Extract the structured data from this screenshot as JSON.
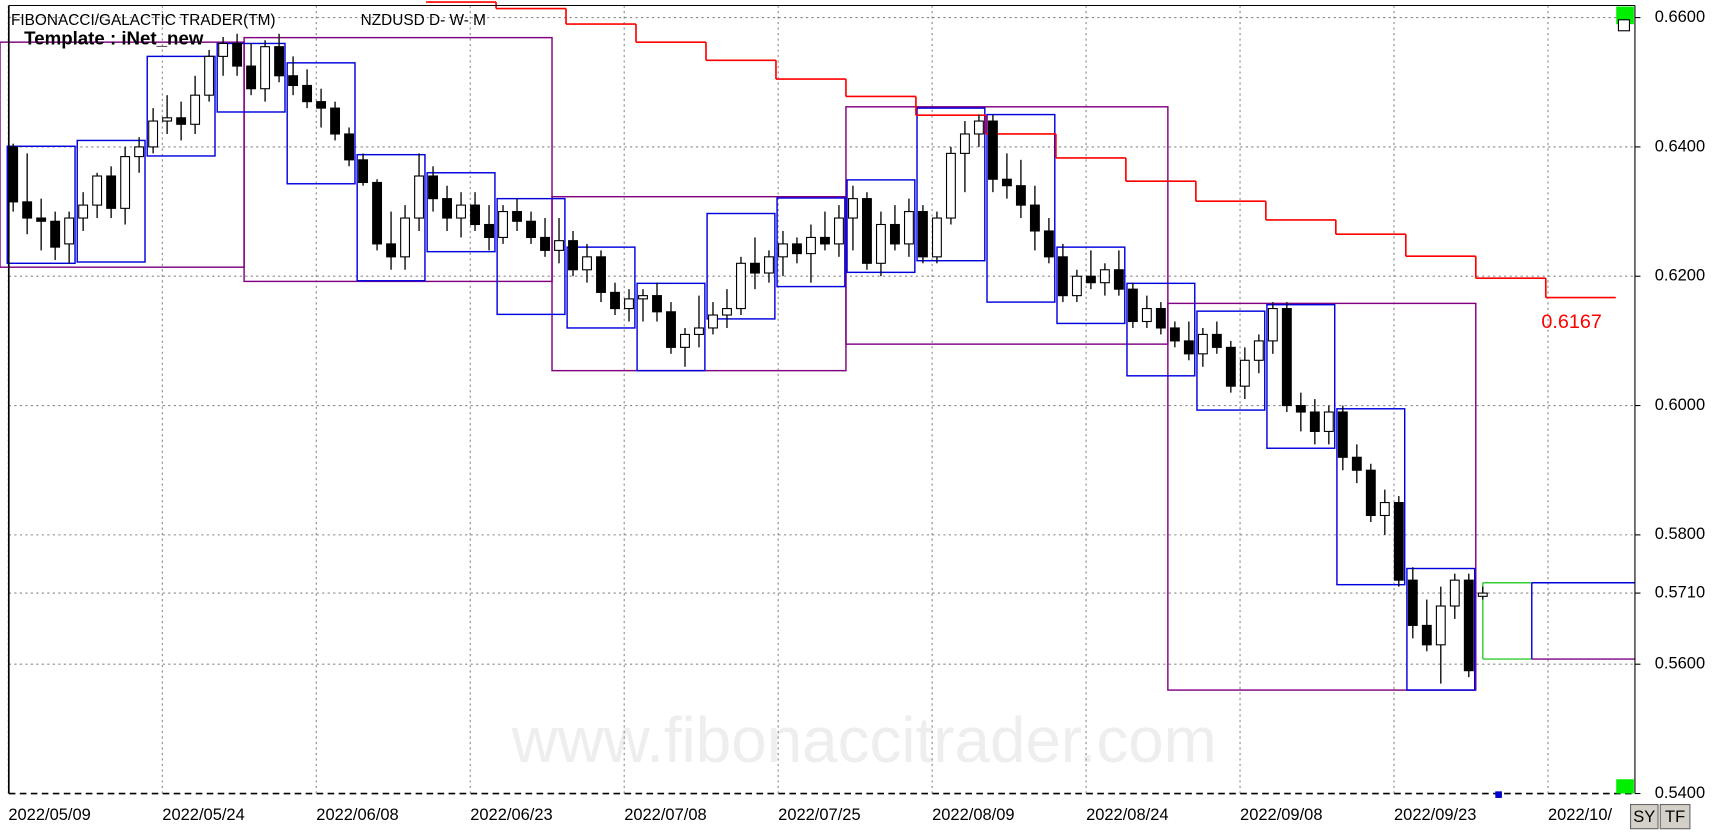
{
  "header": {
    "title": "FIBONACCI/GALACTIC TRADER(TM)",
    "symbol": "NZDUSD D- W- M",
    "template": "Template : iNet_new"
  },
  "watermark": "www.fibonaccitrader.com",
  "buttons": [
    "SY",
    "TF"
  ],
  "chart_data": {
    "type": "candlestick",
    "categories": [
      "2022/05/09",
      null,
      null,
      null,
      null,
      null,
      null,
      null,
      null,
      null,
      null,
      "2022/05/24",
      null,
      null,
      null,
      null,
      null,
      null,
      null,
      null,
      null,
      null,
      "2022/06/08",
      null,
      null,
      null,
      null,
      null,
      null,
      null,
      null,
      null,
      null,
      "2022/06/23",
      null,
      null,
      null,
      null,
      null,
      null,
      null,
      null,
      null,
      null,
      "2022/07/08",
      null,
      null,
      null,
      null,
      null,
      null,
      null,
      null,
      null,
      null,
      "2022/07/25",
      null,
      null,
      null,
      null,
      null,
      null,
      null,
      null,
      null,
      null,
      "2022/08/09",
      null,
      null,
      null,
      null,
      null,
      null,
      null,
      null,
      null,
      null,
      "2022/08/24",
      null,
      null,
      null,
      null,
      null,
      null,
      null,
      null,
      null,
      null,
      "2022/09/08",
      null,
      null,
      null,
      null,
      null,
      null,
      null,
      null,
      null,
      null,
      "2022/09/23",
      null,
      null,
      null,
      null,
      null,
      null,
      null,
      null,
      null,
      null,
      "2022/10/",
      null,
      null,
      null,
      null,
      null
    ],
    "open": [
      0.64,
      0.6315,
      0.629,
      0.6285,
      0.625,
      0.629,
      0.631,
      0.6355,
      0.6305,
      0.6385,
      0.64,
      0.644,
      0.6445,
      0.6435,
      0.648,
      0.654,
      0.656,
      0.6525,
      0.649,
      0.6555,
      0.651,
      0.6495,
      0.647,
      0.646,
      0.642,
      0.638,
      0.6345,
      0.625,
      0.623,
      0.629,
      0.6355,
      0.632,
      0.629,
      0.631,
      0.628,
      0.626,
      0.63,
      0.6285,
      0.626,
      0.624,
      0.6255,
      0.621,
      0.623,
      0.6175,
      0.615,
      0.6165,
      0.617,
      0.6145,
      0.609,
      0.611,
      0.612,
      0.614,
      0.615,
      0.622,
      0.6205,
      0.623,
      0.625,
      0.6235,
      0.626,
      0.625,
      0.629,
      0.632,
      0.622,
      0.628,
      0.625,
      0.63,
      0.623,
      0.629,
      0.639,
      0.642,
      0.644,
      0.635,
      0.634,
      0.631,
      0.627,
      0.623,
      0.617,
      0.62,
      0.619,
      0.621,
      0.618,
      0.613,
      0.615,
      0.612,
      0.61,
      0.608,
      0.611,
      0.609,
      0.603,
      0.607,
      0.61,
      0.615,
      0.6,
      0.599,
      0.596,
      0.599,
      0.592,
      0.59,
      0.583,
      0.585,
      0.573,
      0.566,
      0.563,
      0.569,
      0.573,
      0.5705,
      null,
      null,
      null,
      null,
      null,
      null,
      null,
      null,
      null,
      null
    ],
    "high": [
      0.6405,
      0.639,
      0.632,
      0.63,
      0.63,
      0.633,
      0.636,
      0.637,
      0.64,
      0.6415,
      0.646,
      0.648,
      0.647,
      0.651,
      0.655,
      0.657,
      0.6575,
      0.656,
      0.6565,
      0.6575,
      0.654,
      0.652,
      0.649,
      0.647,
      0.643,
      0.639,
      0.635,
      0.63,
      0.631,
      0.639,
      0.637,
      0.634,
      0.633,
      0.633,
      0.631,
      0.631,
      0.632,
      0.63,
      0.629,
      0.629,
      0.627,
      0.625,
      0.624,
      0.619,
      0.618,
      0.618,
      0.619,
      0.616,
      0.612,
      0.617,
      0.616,
      0.618,
      0.623,
      0.626,
      0.624,
      0.627,
      0.626,
      0.628,
      0.63,
      0.631,
      0.634,
      0.633,
      0.63,
      0.631,
      0.632,
      0.631,
      0.63,
      0.64,
      0.644,
      0.645,
      0.645,
      0.639,
      0.638,
      0.634,
      0.629,
      0.625,
      0.621,
      0.624,
      0.622,
      0.624,
      0.619,
      0.617,
      0.616,
      0.613,
      0.613,
      0.612,
      0.613,
      0.61,
      0.609,
      0.611,
      0.616,
      0.616,
      0.602,
      0.601,
      0.6,
      0.6,
      0.594,
      0.591,
      0.587,
      0.586,
      0.575,
      0.57,
      0.572,
      0.574,
      0.574,
      0.572,
      null,
      null,
      null,
      null,
      null,
      null,
      null,
      null,
      null,
      null
    ],
    "low": [
      0.63,
      0.6265,
      0.624,
      0.6225,
      0.622,
      0.627,
      0.629,
      0.629,
      0.628,
      0.636,
      0.639,
      0.642,
      0.641,
      0.642,
      0.647,
      0.651,
      0.651,
      0.648,
      0.647,
      0.65,
      0.648,
      0.646,
      0.643,
      0.641,
      0.637,
      0.634,
      0.624,
      0.621,
      0.621,
      0.627,
      0.63,
      0.627,
      0.626,
      0.627,
      0.624,
      0.625,
      0.627,
      0.625,
      0.623,
      0.622,
      0.62,
      0.619,
      0.616,
      0.614,
      0.613,
      0.613,
      0.613,
      0.608,
      0.606,
      0.609,
      0.611,
      0.612,
      0.614,
      0.618,
      0.619,
      0.62,
      0.622,
      0.619,
      0.624,
      0.623,
      0.624,
      0.621,
      0.62,
      0.624,
      0.623,
      0.622,
      0.622,
      0.628,
      0.633,
      0.64,
      0.633,
      0.632,
      0.629,
      0.624,
      0.622,
      0.616,
      0.616,
      0.618,
      0.617,
      0.617,
      0.612,
      0.612,
      0.611,
      0.609,
      0.607,
      0.606,
      0.608,
      0.602,
      0.601,
      0.605,
      0.608,
      0.599,
      0.596,
      0.594,
      0.594,
      0.59,
      0.588,
      0.582,
      0.58,
      0.572,
      0.564,
      0.562,
      0.557,
      0.567,
      0.558,
      0.57,
      null,
      null,
      null,
      null,
      null,
      null,
      null,
      null,
      null,
      null
    ],
    "close": [
      0.6315,
      0.629,
      0.6285,
      0.6245,
      0.629,
      0.631,
      0.6355,
      0.6305,
      0.6385,
      0.64,
      0.644,
      0.6445,
      0.6435,
      0.648,
      0.654,
      0.656,
      0.6525,
      0.649,
      0.6555,
      0.651,
      0.6495,
      0.647,
      0.646,
      0.642,
      0.638,
      0.6345,
      0.625,
      0.623,
      0.629,
      0.6355,
      0.632,
      0.629,
      0.631,
      0.628,
      0.626,
      0.63,
      0.6285,
      0.626,
      0.624,
      0.6255,
      0.621,
      0.623,
      0.6175,
      0.615,
      0.6165,
      0.617,
      0.6145,
      0.609,
      0.611,
      0.612,
      0.614,
      0.615,
      0.622,
      0.6205,
      0.623,
      0.625,
      0.6235,
      0.626,
      0.625,
      0.629,
      0.632,
      0.622,
      0.628,
      0.625,
      0.63,
      0.623,
      0.629,
      0.639,
      0.642,
      0.644,
      0.635,
      0.634,
      0.631,
      0.627,
      0.623,
      0.617,
      0.62,
      0.619,
      0.621,
      0.618,
      0.613,
      0.615,
      0.612,
      0.61,
      0.608,
      0.611,
      0.609,
      0.603,
      0.607,
      0.61,
      0.615,
      0.6,
      0.599,
      0.596,
      0.599,
      0.592,
      0.59,
      0.583,
      0.585,
      0.573,
      0.566,
      0.563,
      0.569,
      0.573,
      0.559,
      0.571,
      null,
      null,
      null,
      null,
      null,
      null,
      null,
      null,
      null,
      null
    ],
    "up_color": "#ffffff",
    "down_color": "#000000",
    "ylim": [
      0.54,
      0.66
    ],
    "yticks": [
      {
        "value": 0.66,
        "label": "0.6600"
      },
      {
        "value": 0.64,
        "label": "0.6400"
      },
      {
        "value": 0.62,
        "label": "0.6200"
      },
      {
        "value": 0.6,
        "label": "0.6000"
      },
      {
        "value": 0.58,
        "label": "0.5800"
      },
      {
        "value": 0.571,
        "label": "0.5710"
      },
      {
        "value": 0.56,
        "label": "0.5600"
      },
      {
        "value": 0.54,
        "label": "0.5400"
      }
    ],
    "grid": true,
    "weekly_boxes": {
      "color": "#0000dd",
      "boxes": [
        {
          "start": 0,
          "end": 4,
          "high": 0.6401,
          "low": 0.622
        },
        {
          "start": 5,
          "end": 9,
          "high": 0.641,
          "low": 0.6222
        },
        {
          "start": 10,
          "end": 14,
          "high": 0.654,
          "low": 0.6386
        },
        {
          "start": 15,
          "end": 19,
          "high": 0.656,
          "low": 0.6454
        },
        {
          "start": 20,
          "end": 24,
          "high": 0.653,
          "low": 0.6343
        },
        {
          "start": 25,
          "end": 29,
          "high": 0.6388,
          "low": 0.6193
        },
        {
          "start": 30,
          "end": 34,
          "high": 0.636,
          "low": 0.6238
        },
        {
          "start": 35,
          "end": 39,
          "high": 0.632,
          "low": 0.6141
        },
        {
          "start": 40,
          "end": 44,
          "high": 0.6245,
          "low": 0.612
        },
        {
          "start": 45,
          "end": 49,
          "high": 0.6189,
          "low": 0.6054
        },
        {
          "start": 50,
          "end": 54,
          "high": 0.6297,
          "low": 0.6134
        },
        {
          "start": 55,
          "end": 59,
          "high": 0.6321,
          "low": 0.6184
        },
        {
          "start": 60,
          "end": 64,
          "high": 0.6349,
          "low": 0.6206
        },
        {
          "start": 65,
          "end": 69,
          "high": 0.646,
          "low": 0.6224
        },
        {
          "start": 70,
          "end": 74,
          "high": 0.645,
          "low": 0.616
        },
        {
          "start": 75,
          "end": 79,
          "high": 0.6245,
          "low": 0.6127
        },
        {
          "start": 80,
          "end": 84,
          "high": 0.6189,
          "low": 0.6046
        },
        {
          "start": 85,
          "end": 89,
          "high": 0.6146,
          "low": 0.5993
        },
        {
          "start": 90,
          "end": 94,
          "high": 0.6156,
          "low": 0.5934
        },
        {
          "start": 95,
          "end": 99,
          "high": 0.5995,
          "low": 0.5723
        },
        {
          "start": 100,
          "end": 104,
          "high": 0.5748,
          "low": 0.556
        }
      ]
    },
    "monthly_boxes": {
      "color": "#800080",
      "boxes": [
        {
          "start": 0,
          "end": 16,
          "high": 0.6562,
          "low": 0.6214
        },
        {
          "start": 17,
          "end": 38,
          "high": 0.6569,
          "low": 0.6192
        },
        {
          "start": 39,
          "end": 59,
          "high": 0.6323,
          "low": 0.6054
        },
        {
          "start": 60,
          "end": 82,
          "high": 0.6462,
          "low": 0.6095
        },
        {
          "start": 83,
          "end": 104,
          "high": 0.6158,
          "low": 0.556
        }
      ]
    },
    "step_line": {
      "color": "#ff0000",
      "steps": [
        {
          "start": 30,
          "end": 34,
          "value": 0.6624
        },
        {
          "start": 35,
          "end": 39,
          "value": 0.6614
        },
        {
          "start": 40,
          "end": 44,
          "value": 0.659
        },
        {
          "start": 45,
          "end": 49,
          "value": 0.6562
        },
        {
          "start": 50,
          "end": 54,
          "value": 0.6534
        },
        {
          "start": 55,
          "end": 59,
          "value": 0.6505
        },
        {
          "start": 60,
          "end": 64,
          "value": 0.6478
        },
        {
          "start": 65,
          "end": 69,
          "value": 0.6449
        },
        {
          "start": 70,
          "end": 74,
          "value": 0.642
        },
        {
          "start": 75,
          "end": 79,
          "value": 0.6383
        },
        {
          "start": 80,
          "end": 84,
          "value": 0.6347
        },
        {
          "start": 85,
          "end": 89,
          "value": 0.6316
        },
        {
          "start": 90,
          "end": 94,
          "value": 0.6287
        },
        {
          "start": 95,
          "end": 99,
          "value": 0.6265
        },
        {
          "start": 100,
          "end": 104,
          "value": 0.6231
        },
        {
          "start": 105,
          "end": 109,
          "value": 0.6197
        },
        {
          "start": 110,
          "end": 114,
          "value": 0.6167
        }
      ]
    },
    "projection": {
      "start": 105,
      "end": 108,
      "high": 0.5726,
      "low": 0.5608,
      "color": "#33cc33"
    }
  }
}
